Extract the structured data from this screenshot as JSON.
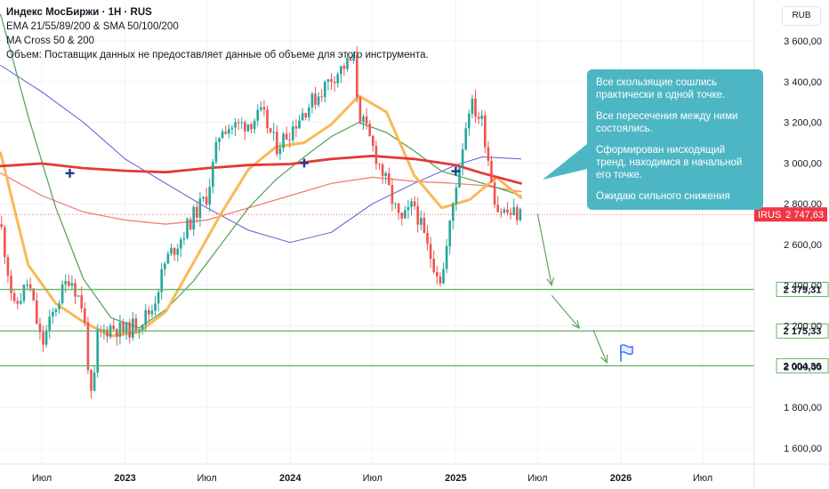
{
  "legend": {
    "title": "Индекс МосБиржи · 1H · RUS",
    "line2": "EMA 21/55/89/200 & SMA 50/100/200",
    "line3": "MA Cross 50 & 200",
    "line4": "Объем: Поставщик данных не предоставляет данные об объеме для этого инструмента."
  },
  "currency": "RUB",
  "note": {
    "p1": "Все скользящие сошлись практически в одной точке.",
    "p2": "Все пересечения между ними состоялись.",
    "p3": "Сформирован нисходящий тренд, находимся в начальной его точке.",
    "p4": "Ожидаю сильного снижения"
  },
  "colors": {
    "up": "#26a69a",
    "down": "#ef5350",
    "ema_orange": "#f9b957",
    "ma_green": "#5ea45c",
    "ma_red": "#e53935",
    "ma_salmon": "#f0786a",
    "ma_blue": "#5c5ccd",
    "level": "#66b366",
    "current": "#f23645",
    "note": "#4db6c4"
  },
  "chart_data": {
    "type": "candlestick",
    "symbol": "IRUS",
    "y_range": [
      1480,
      3780
    ],
    "y_ticks": [
      "3 600,00",
      "3 400,00",
      "3 200,00",
      "3 000,00",
      "2 800,00",
      "2 600,00",
      "2 400,00",
      "2 200,00",
      "2 000,00",
      "1 800,00",
      "1 600,00"
    ],
    "y_tick_values": [
      3600,
      3400,
      3200,
      3000,
      2800,
      2600,
      2400,
      2200,
      2000,
      1800,
      1600
    ],
    "x_ticks": [
      {
        "label": "Июл",
        "x": "2022-07",
        "bold": false
      },
      {
        "label": "2023",
        "x": "2023-01",
        "bold": true
      },
      {
        "label": "Июл",
        "x": "2023-07",
        "bold": false
      },
      {
        "label": "2024",
        "x": "2024-01",
        "bold": true
      },
      {
        "label": "Июл",
        "x": "2024-07",
        "bold": false
      },
      {
        "label": "2025",
        "x": "2025-01",
        "bold": true
      },
      {
        "label": "Июл",
        "x": "2025-07",
        "bold": false
      },
      {
        "label": "2026",
        "x": "2026-01",
        "bold": true
      },
      {
        "label": "Июл",
        "x": "2026-07",
        "bold": false
      }
    ],
    "levels": [
      {
        "value": 2379.31,
        "label": "2 379,31"
      },
      {
        "value": 2175.33,
        "label": "2 175,33"
      },
      {
        "value": 2004.36,
        "label": "2 004,36"
      }
    ],
    "current": {
      "value": 2747.63,
      "label": "2 747,63",
      "symbol": "IRUS"
    },
    "path_points": [
      [
        "2022-04",
        2700
      ],
      [
        "2022-05",
        2280
      ],
      [
        "2022-06",
        2420
      ],
      [
        "2022-07",
        2100
      ],
      [
        "2022-08",
        2300
      ],
      [
        "2022-09",
        2450
      ],
      [
        "2022-10",
        2280
      ],
      [
        "2022-10-20",
        1790
      ],
      [
        "2022-11",
        2150
      ],
      [
        "2022-12",
        2200
      ],
      [
        "2023-01",
        2170
      ],
      [
        "2023-02",
        2220
      ],
      [
        "2023-03",
        2280
      ],
      [
        "2023-04",
        2520
      ],
      [
        "2023-05",
        2620
      ],
      [
        "2023-06",
        2740
      ],
      [
        "2023-07",
        2840
      ],
      [
        "2023-08",
        3180
      ],
      [
        "2023-09",
        3180
      ],
      [
        "2023-10",
        3200
      ],
      [
        "2023-11",
        3240
      ],
      [
        "2023-12",
        3080
      ],
      [
        "2024-01",
        3160
      ],
      [
        "2024-02",
        3260
      ],
      [
        "2024-03",
        3330
      ],
      [
        "2024-04",
        3420
      ],
      [
        "2024-05",
        3480
      ],
      [
        "2024-05-20",
        3510
      ],
      [
        "2024-06",
        3250
      ],
      [
        "2024-07",
        3080
      ],
      [
        "2024-08",
        2900
      ],
      [
        "2024-09",
        2700
      ],
      [
        "2024-10",
        2800
      ],
      [
        "2024-11",
        2570
      ],
      [
        "2024-12",
        2420
      ],
      [
        "2025-01",
        2890
      ],
      [
        "2025-02",
        3300
      ],
      [
        "2025-03",
        3200
      ],
      [
        "2025-04",
        2780
      ],
      [
        "2025-05",
        2750
      ],
      [
        "2025-05-25",
        2747.63
      ]
    ],
    "ema21": [
      [
        "2022-04",
        3050
      ],
      [
        "2022-06",
        2500
      ],
      [
        "2022-08",
        2310
      ],
      [
        "2022-10",
        2220
      ],
      [
        "2022-12",
        2150
      ],
      [
        "2023-02",
        2170
      ],
      [
        "2023-04",
        2270
      ],
      [
        "2023-06",
        2510
      ],
      [
        "2023-08",
        2750
      ],
      [
        "2023-10",
        2970
      ],
      [
        "2023-12",
        3080
      ],
      [
        "2024-02",
        3100
      ],
      [
        "2024-04",
        3190
      ],
      [
        "2024-06",
        3330
      ],
      [
        "2024-08",
        3250
      ],
      [
        "2024-10",
        2940
      ],
      [
        "2024-12",
        2780
      ],
      [
        "2025-02",
        2820
      ],
      [
        "2025-04",
        2930
      ],
      [
        "2025-05-25",
        2830
      ]
    ],
    "ma_green": [
      [
        "2022-04",
        3730
      ],
      [
        "2022-06",
        3230
      ],
      [
        "2022-08",
        2780
      ],
      [
        "2022-10",
        2430
      ],
      [
        "2022-12",
        2240
      ],
      [
        "2023-02",
        2190
      ],
      [
        "2023-04",
        2280
      ],
      [
        "2023-06",
        2420
      ],
      [
        "2023-08",
        2600
      ],
      [
        "2023-10",
        2780
      ],
      [
        "2023-12",
        2920
      ],
      [
        "2024-02",
        3030
      ],
      [
        "2024-04",
        3130
      ],
      [
        "2024-06",
        3200
      ],
      [
        "2024-08",
        3150
      ],
      [
        "2024-10",
        3060
      ],
      [
        "2024-12",
        2960
      ],
      [
        "2025-02",
        2920
      ],
      [
        "2025-04",
        2880
      ],
      [
        "2025-05-25",
        2840
      ]
    ],
    "ma_red": [
      [
        "2022-04",
        2985
      ],
      [
        "2022-07",
        2998
      ],
      [
        "2022-10",
        2975
      ],
      [
        "2023-01",
        2962
      ],
      [
        "2023-04",
        2955
      ],
      [
        "2023-07",
        2975
      ],
      [
        "2023-10",
        2990
      ],
      [
        "2024-01",
        2995
      ],
      [
        "2024-04",
        3020
      ],
      [
        "2024-07",
        3035
      ],
      [
        "2024-10",
        3020
      ],
      [
        "2025-01",
        2990
      ],
      [
        "2025-03",
        2950
      ],
      [
        "2025-05-25",
        2900
      ]
    ],
    "ma_salmon": [
      [
        "2022-04",
        2950
      ],
      [
        "2022-07",
        2840
      ],
      [
        "2022-10",
        2760
      ],
      [
        "2023-01",
        2720
      ],
      [
        "2023-04",
        2700
      ],
      [
        "2023-07",
        2720
      ],
      [
        "2023-10",
        2780
      ],
      [
        "2024-01",
        2840
      ],
      [
        "2024-04",
        2900
      ],
      [
        "2024-07",
        2930
      ],
      [
        "2024-10",
        2910
      ],
      [
        "2025-01",
        2900
      ],
      [
        "2025-03",
        2890
      ],
      [
        "2025-05-25",
        2860
      ]
    ],
    "ma_blue": [
      [
        "2022-04",
        3480
      ],
      [
        "2022-07",
        3350
      ],
      [
        "2022-10",
        3200
      ],
      [
        "2023-01",
        3020
      ],
      [
        "2023-04",
        2900
      ],
      [
        "2023-07",
        2780
      ],
      [
        "2023-10",
        2670
      ],
      [
        "2024-01",
        2610
      ],
      [
        "2024-04",
        2660
      ],
      [
        "2024-07",
        2800
      ],
      [
        "2024-10",
        2900
      ],
      [
        "2025-01",
        2990
      ],
      [
        "2025-03",
        3030
      ],
      [
        "2025-05-25",
        3020
      ]
    ],
    "cross_markers": [
      [
        "2022-09",
        2950
      ],
      [
        "2024-02",
        3000
      ],
      [
        "2025-01",
        2960
      ]
    ],
    "forecast_arrows": [
      [
        [
          "2025-07",
          2750
        ],
        [
          "2025-08",
          2400
        ]
      ],
      [
        [
          "2025-08",
          2350
        ],
        [
          "2025-10",
          2190
        ]
      ],
      [
        [
          "2025-11",
          2180
        ],
        [
          "2025-12",
          2020
        ]
      ]
    ],
    "flag": [
      "2026-01",
      2060
    ]
  }
}
